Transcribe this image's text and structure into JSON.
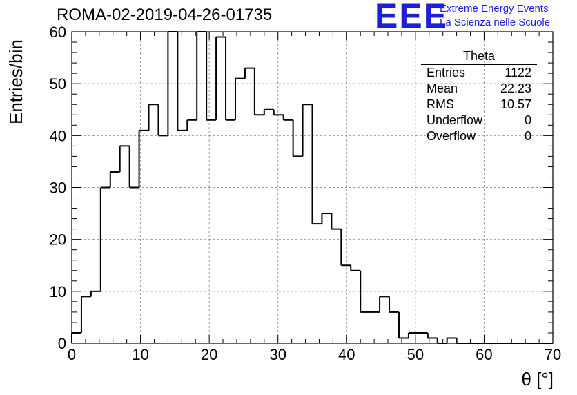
{
  "chart_data": {
    "type": "bar",
    "title": "ROMA-02-2019-04-26-01735",
    "xlabel": "θ [°]",
    "ylabel": "Entries/bin",
    "xlim": [
      0,
      70
    ],
    "ylim": [
      0,
      60
    ],
    "grid": true,
    "bin_width": 1.4,
    "x_ticks": [
      "0",
      "10",
      "20",
      "30",
      "40",
      "50",
      "60",
      "70"
    ],
    "y_ticks": [
      "0",
      "10",
      "20",
      "30",
      "40",
      "50",
      "60"
    ],
    "bin_edges_start": 0,
    "values": [
      2,
      9,
      10,
      30,
      33,
      38,
      30,
      41,
      46,
      40,
      60,
      41,
      43,
      60,
      43,
      59,
      43,
      51,
      53,
      44,
      45,
      44,
      43,
      36,
      46,
      23,
      25,
      22,
      15,
      14,
      6,
      6,
      9,
      6,
      1,
      2,
      2,
      1,
      0,
      1,
      0,
      0,
      0,
      0,
      0,
      0,
      0,
      0,
      0,
      0
    ],
    "stats": {
      "name": "Theta",
      "rows": [
        {
          "label": "Entries",
          "value": "1122"
        },
        {
          "label": "Mean",
          "value": "22.23"
        },
        {
          "label": "RMS",
          "value": "10.57"
        },
        {
          "label": "Underflow",
          "value": "0"
        },
        {
          "label": "Overflow",
          "value": "0"
        }
      ]
    }
  },
  "logo": {
    "text": "EEE",
    "line1": "Extreme Energy Events",
    "line2": "La Scienza nelle Scuole",
    "color": "#1f1fdb"
  }
}
